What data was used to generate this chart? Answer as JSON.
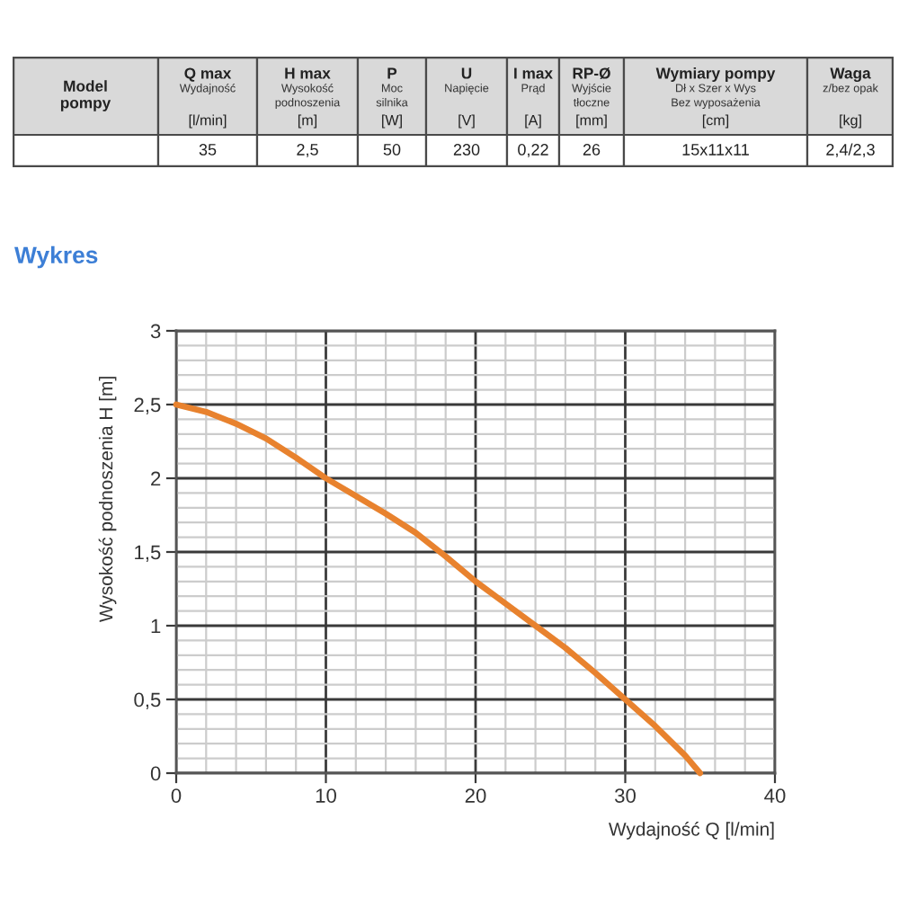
{
  "chart_data": [
    {
      "type": "other",
      "categories": [
        "Model\npompy",
        "Q max\nWydajność\n[l/min]",
        "H max\nWysokość\npodnoszenia\n[m]",
        "P\nMoc\nsilnika\n[W]",
        "U\nNapięcie\n[V]",
        "I max\nPrąd\n[A]",
        "RP-Ø\nWyjście\ntłoczne\n[mm]",
        "Wymiary pompy\nDł x Szer x Wys\nBez wyposażenia\n[cm]",
        "Waga\nz/bez opak\n[kg]"
      ],
      "cell_labels": [
        [
          null,
          "35",
          "2,5",
          "50",
          "230",
          "0,22",
          "26",
          "15x11x11",
          "2,4/2,3"
        ]
      ]
    },
    {
      "type": "line",
      "title": "Wykres",
      "xlabel": "Wydajność Q [l/min]",
      "ylabel": "Wysokość podnoszenia H [m]",
      "x": [
        0,
        2,
        4,
        6,
        8,
        10,
        12,
        14,
        16,
        18,
        20,
        22,
        24,
        26,
        28,
        30,
        32,
        34,
        35
      ],
      "series": [
        {
          "color": "#e8822e",
          "values": [
            2.5,
            2.45,
            2.37,
            2.27,
            2.14,
            2.0,
            1.88,
            1.76,
            1.63,
            1.47,
            1.3,
            1.15,
            1.0,
            0.85,
            0.68,
            0.5,
            0.32,
            0.12,
            0
          ]
        }
      ],
      "xlim": [
        0,
        40
      ],
      "ylim": [
        0,
        3
      ],
      "xticks": [
        0,
        {
          "value": 2,
          "label": null
        },
        {
          "value": 4,
          "label": null
        },
        {
          "value": 6,
          "label": null
        },
        {
          "value": 8,
          "label": null
        },
        10,
        {
          "value": 12,
          "label": null
        },
        {
          "value": 14,
          "label": null
        },
        {
          "value": 16,
          "label": null
        },
        {
          "value": 18,
          "label": null
        },
        20,
        {
          "value": 22,
          "label": null
        },
        {
          "value": 24,
          "label": null
        },
        {
          "value": 26,
          "label": null
        },
        {
          "value": 28,
          "label": null
        },
        30,
        {
          "value": 32,
          "label": null
        },
        {
          "value": 34,
          "label": null
        },
        {
          "value": 36,
          "label": null
        },
        {
          "value": 38,
          "label": null
        },
        40
      ],
      "yticks": [
        0,
        {
          "value": 0.1,
          "label": null
        },
        {
          "value": 0.2,
          "label": null
        },
        {
          "value": 0.3,
          "label": null
        },
        {
          "value": 0.4,
          "label": null
        },
        {
          "value": 0.5,
          "label": "0,5"
        },
        {
          "value": 0.6,
          "label": null
        },
        {
          "value": 0.7,
          "label": null
        },
        {
          "value": 0.8,
          "label": null
        },
        {
          "value": 0.9,
          "label": null
        },
        1,
        {
          "value": 1.1,
          "label": null
        },
        {
          "value": 1.2,
          "label": null
        },
        {
          "value": 1.3,
          "label": null
        },
        {
          "value": 1.4,
          "label": null
        },
        {
          "value": 1.5,
          "label": "1,5"
        },
        {
          "value": 1.6,
          "label": null
        },
        {
          "value": 1.7,
          "label": null
        },
        {
          "value": 1.8,
          "label": null
        },
        {
          "value": 1.9,
          "label": null
        },
        2,
        {
          "value": 2.1,
          "label": null
        },
        {
          "value": 2.2,
          "label": null
        },
        {
          "value": 2.3,
          "label": null
        },
        {
          "value": 2.4,
          "label": null
        },
        {
          "value": 2.5,
          "label": "2,5"
        },
        {
          "value": 2.6,
          "label": null
        },
        {
          "value": 2.7,
          "label": null
        },
        {
          "value": 2.8,
          "label": null
        },
        {
          "value": 2.9,
          "label": null
        },
        3
      ],
      "grid": true
    }
  ]
}
